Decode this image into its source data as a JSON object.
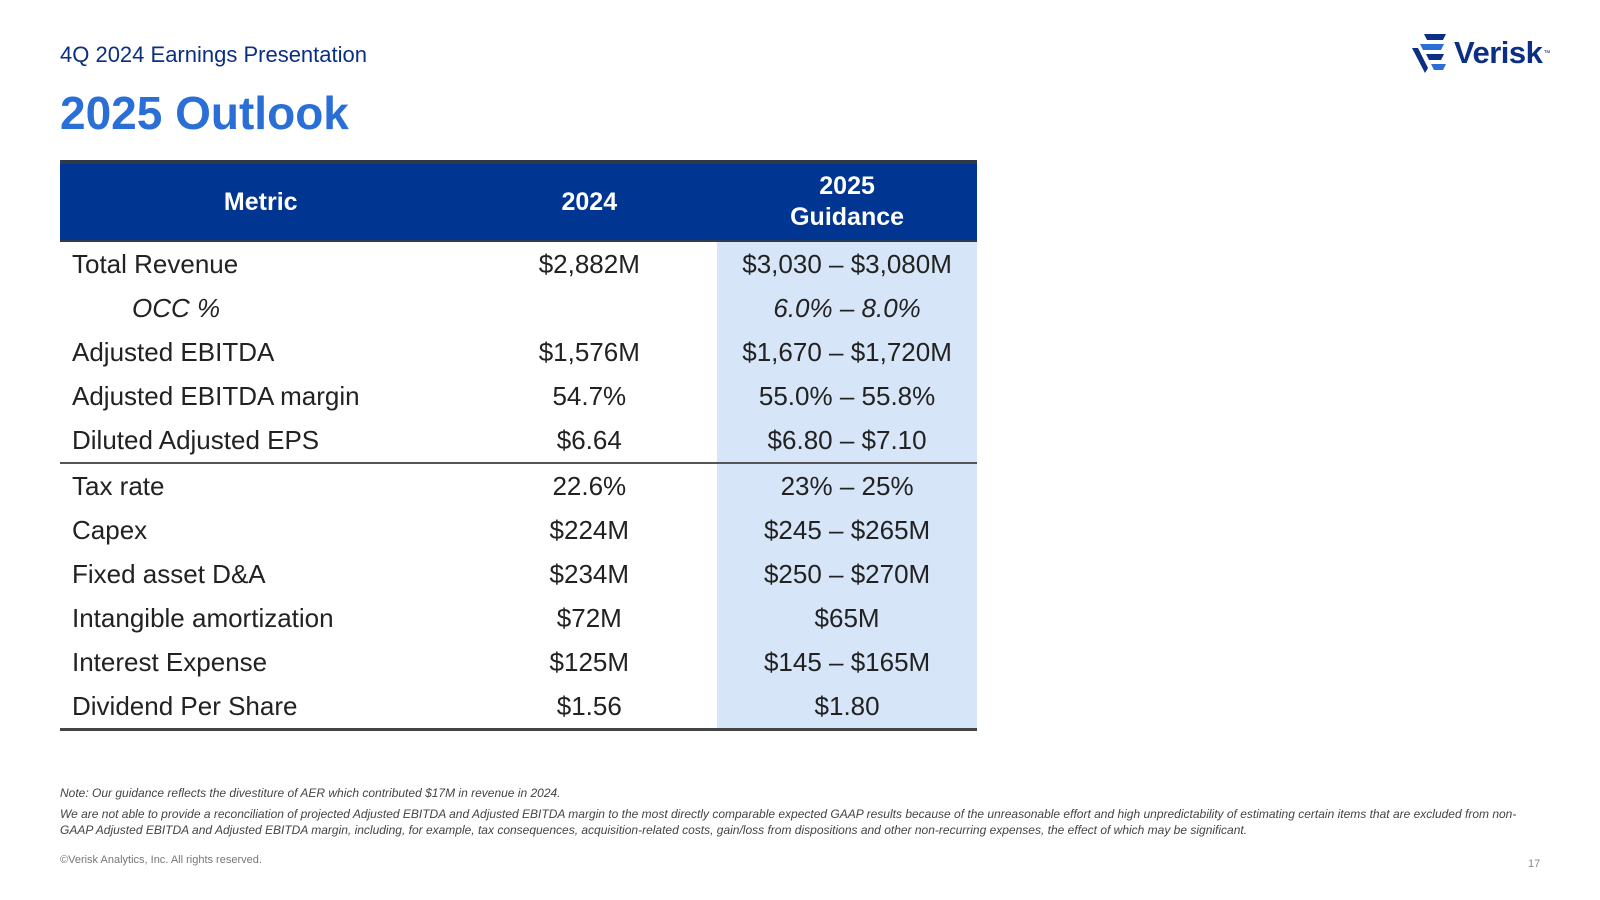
{
  "header": {
    "subtitle": "4Q 2024 Earnings Presentation",
    "title": "2025 Outlook",
    "logo_text": "Verisk",
    "logo_tm": "™"
  },
  "table": {
    "headers": {
      "metric": "Metric",
      "year": "2024",
      "guidance_line1": "2025",
      "guidance_line2": "Guidance"
    },
    "rows": [
      {
        "metric": "Total Revenue",
        "y2024": "$2,882M",
        "guidance": "$3,030 – $3,080M"
      },
      {
        "metric": "OCC %",
        "y2024": "",
        "guidance": "6.0% – 8.0%"
      },
      {
        "metric": "Adjusted EBITDA",
        "y2024": "$1,576M",
        "guidance": "$1,670 – $1,720M"
      },
      {
        "metric": "Adjusted EBITDA margin",
        "y2024": "54.7%",
        "guidance": "55.0% – 55.8%"
      },
      {
        "metric": "Diluted Adjusted EPS",
        "y2024": "$6.64",
        "guidance": "$6.80 – $7.10"
      },
      {
        "metric": "Tax rate",
        "y2024": "22.6%",
        "guidance": "23% – 25%"
      },
      {
        "metric": "Capex",
        "y2024": "$224M",
        "guidance": "$245 – $265M"
      },
      {
        "metric": "Fixed asset D&A",
        "y2024": "$234M",
        "guidance": "$250 – $270M"
      },
      {
        "metric": "Intangible amortization",
        "y2024": "$72M",
        "guidance": "$65M"
      },
      {
        "metric": "Interest Expense",
        "y2024": "$125M",
        "guidance": "$145 – $165M"
      },
      {
        "metric": "Dividend Per Share",
        "y2024": "$1.56",
        "guidance": "$1.80"
      }
    ]
  },
  "notes": {
    "note1": "Note: Our guidance reflects the divestiture of AER which contributed $17M in revenue in 2024.",
    "note2": "We are not able to provide a reconciliation of projected Adjusted EBITDA and Adjusted EBITDA margin to the most directly comparable expected GAAP results because of the unreasonable effort and high unpredictability of estimating certain items that are excluded from non-GAAP Adjusted EBITDA and Adjusted EBITDA margin, including, for example, tax consequences, acquisition-related costs, gain/loss from dispositions and other non-recurring expenses, the effect of which may be significant."
  },
  "footer": {
    "copyright": "©Verisk Analytics, Inc. All rights reserved.",
    "page_number": "17"
  },
  "colors": {
    "header_bg": "#003591",
    "title": "#2a6fd6",
    "subtitle": "#0b2f82",
    "guidance_bg": "#d6e6f8"
  }
}
